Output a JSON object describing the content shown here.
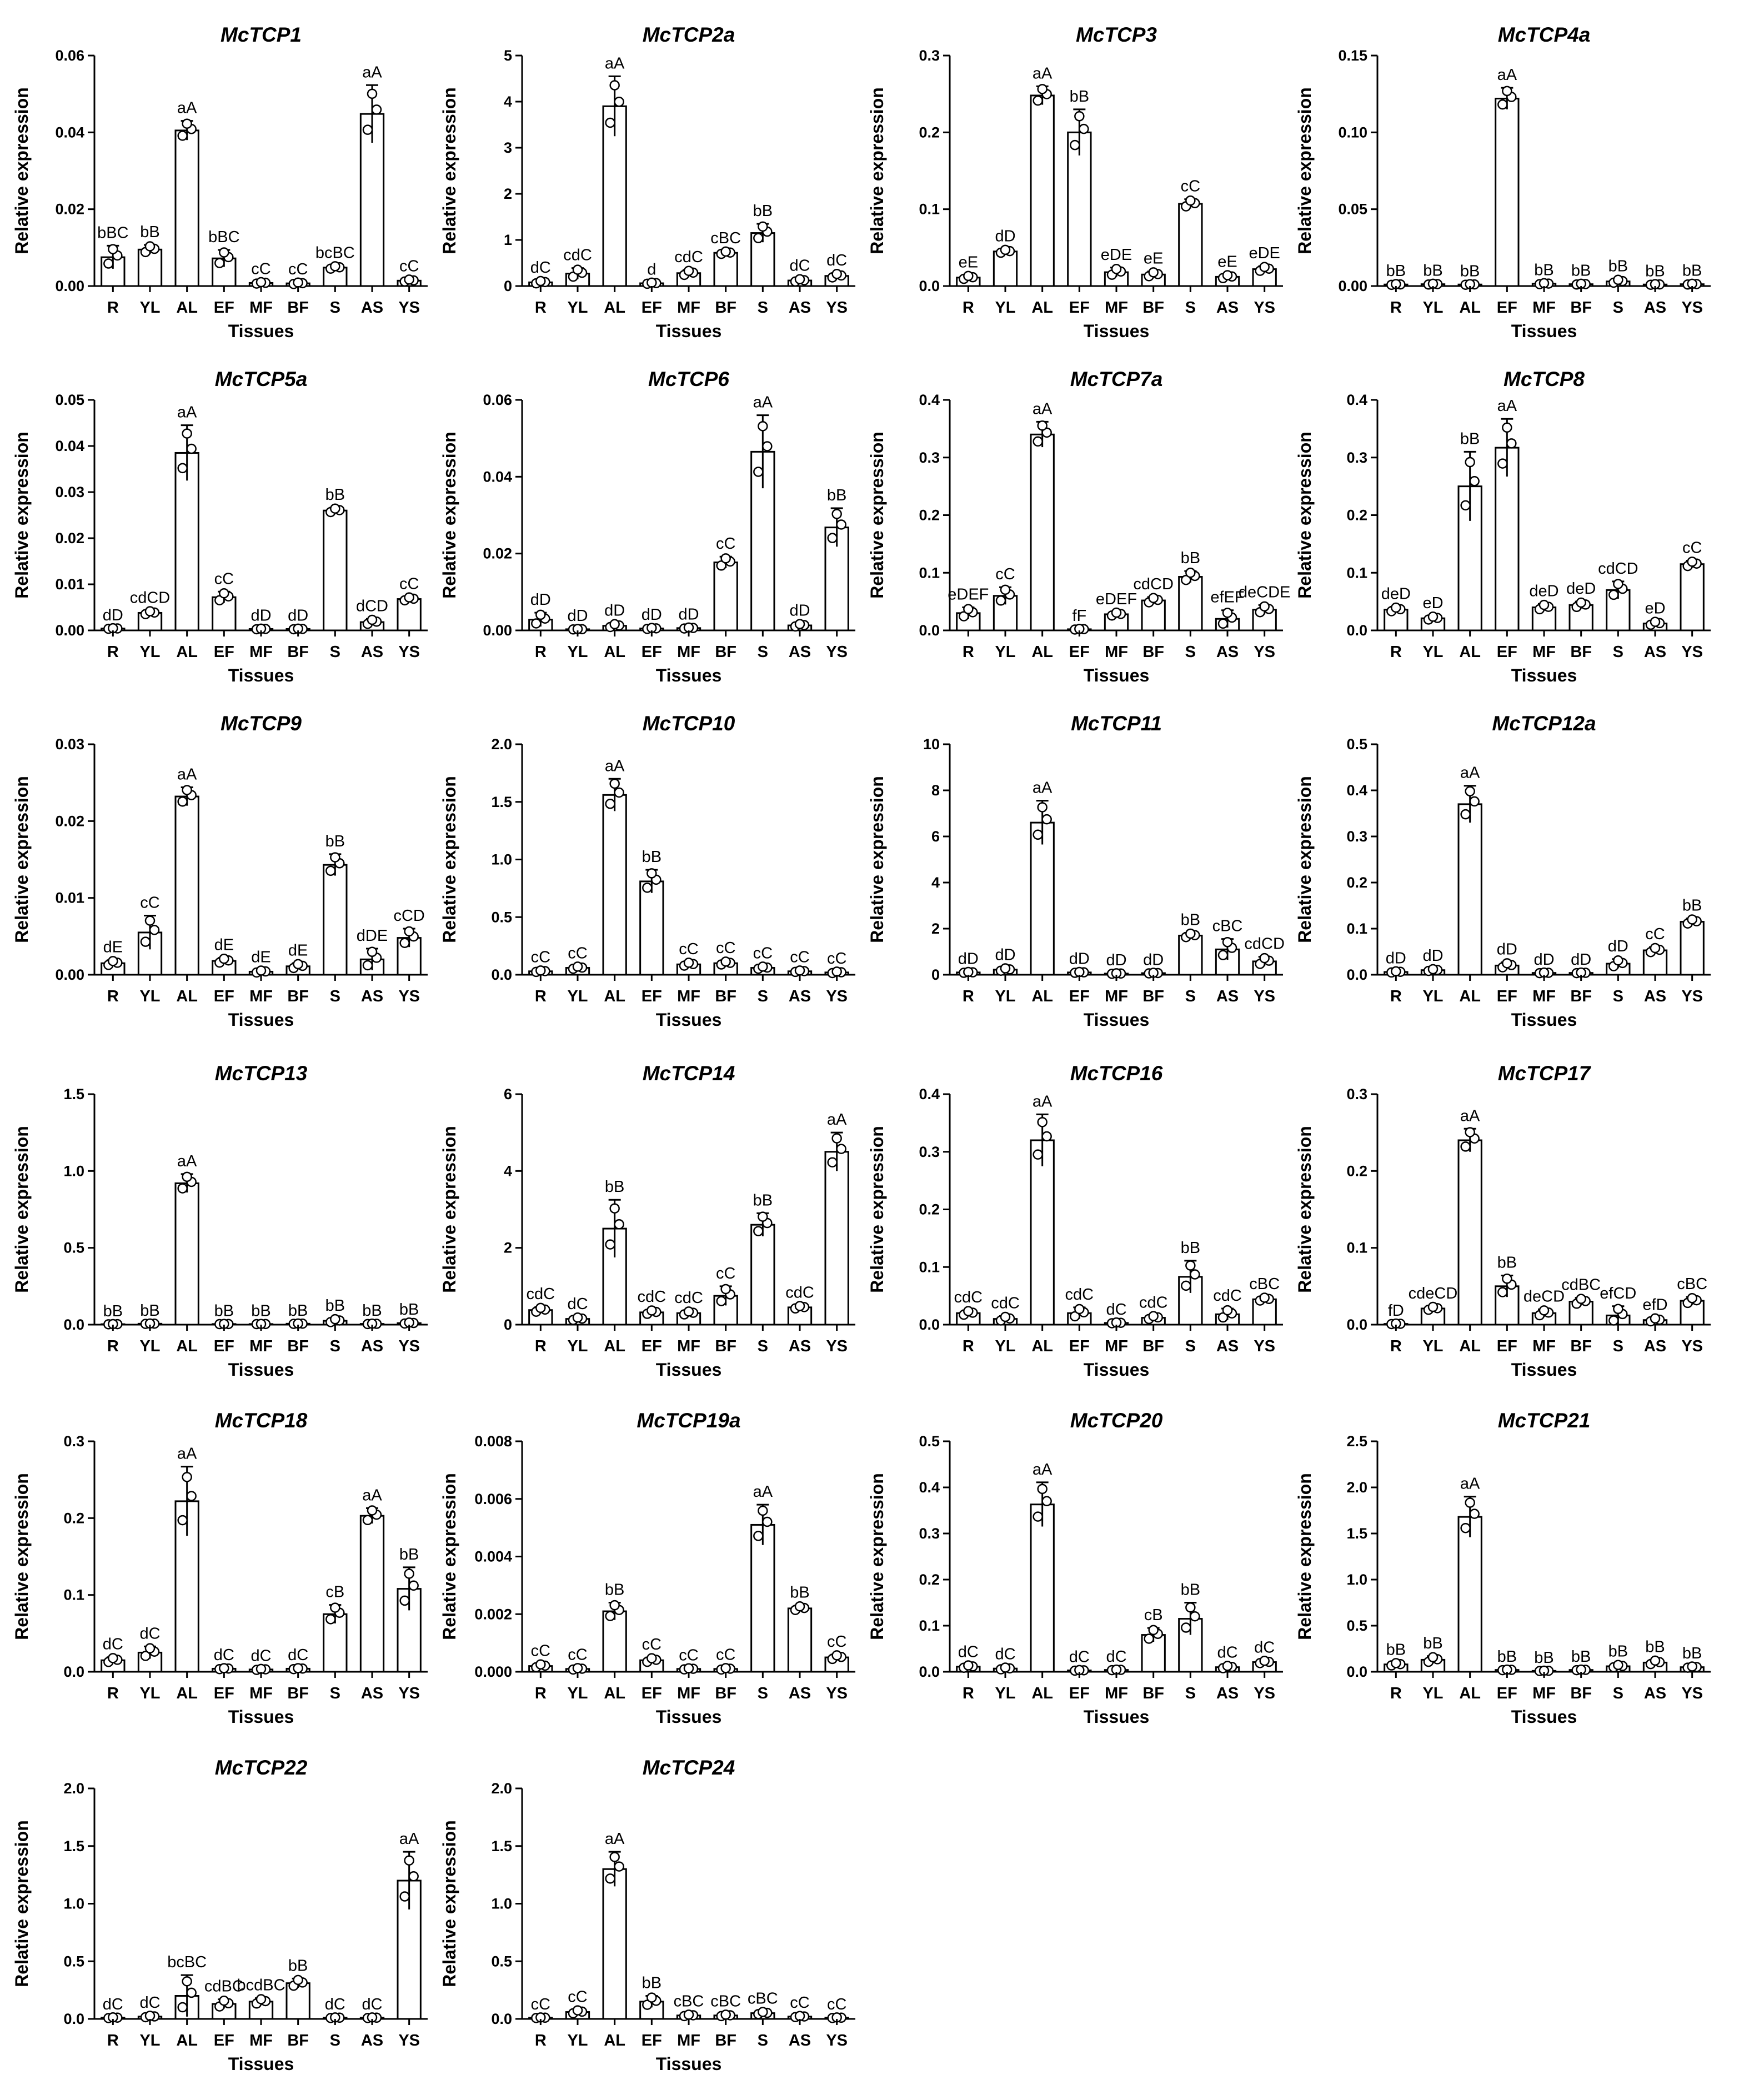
{
  "chart_data": [
    {
      "type": "bar",
      "title": "McTCP1",
      "xlabel": "Tissues",
      "ylabel": "Relative expression",
      "ylim": [
        0,
        0.06
      ],
      "yticks": [
        "0.00",
        "0.02",
        "0.04",
        "0.06"
      ],
      "categories": [
        "R",
        "YL",
        "AL",
        "EF",
        "MF",
        "BF",
        "S",
        "AS",
        "YS"
      ],
      "values": [
        0.0075,
        0.0095,
        0.0405,
        0.0072,
        0.0008,
        0.0007,
        0.0048,
        0.0448,
        0.0014
      ],
      "errors": [
        0.003,
        0.0012,
        0.0025,
        0.0022,
        0.0003,
        0.0003,
        0.0005,
        0.0075,
        0.0004
      ],
      "labels": [
        "bBC",
        "bB",
        "aA",
        "bBC",
        "cC",
        "cC",
        "bcBC",
        "aA",
        "cC"
      ]
    },
    {
      "type": "bar",
      "title": "McTCP2a",
      "xlabel": "Tissues",
      "ylabel": "Relative expression",
      "ylim": [
        0,
        5
      ],
      "yticks": [
        "0",
        "1",
        "2",
        "3",
        "4",
        "5"
      ],
      "categories": [
        "R",
        "YL",
        "AL",
        "EF",
        "MF",
        "BF",
        "S",
        "AS",
        "YS"
      ],
      "values": [
        0.08,
        0.27,
        3.9,
        0.06,
        0.28,
        0.72,
        1.15,
        0.12,
        0.22
      ],
      "errors": [
        0.04,
        0.12,
        0.65,
        0.02,
        0.07,
        0.04,
        0.2,
        0.04,
        0.06
      ],
      "labels": [
        "dC",
        "cdC",
        "aA",
        "d",
        "cdC",
        "cBC",
        "bB",
        "dC",
        "dC"
      ]
    },
    {
      "type": "bar",
      "title": "McTCP3",
      "xlabel": "Tissues",
      "ylabel": "Relative expression",
      "ylim": [
        0,
        0.3
      ],
      "yticks": [
        "0.0",
        "0.1",
        "0.2",
        "0.3"
      ],
      "categories": [
        "R",
        "YL",
        "AL",
        "EF",
        "MF",
        "BF",
        "S",
        "AS",
        "YS"
      ],
      "values": [
        0.011,
        0.045,
        0.248,
        0.2,
        0.018,
        0.015,
        0.107,
        0.012,
        0.022
      ],
      "errors": [
        0.003,
        0.003,
        0.012,
        0.03,
        0.006,
        0.004,
        0.006,
        0.003,
        0.004
      ],
      "labels": [
        "eE",
        "dD",
        "aA",
        "bB",
        "eDE",
        "eE",
        "cC",
        "eE",
        "eDE"
      ]
    },
    {
      "type": "bar",
      "title": "McTCP4a",
      "xlabel": "Tissues",
      "ylabel": "Relative expression",
      "ylim": [
        0,
        0.15
      ],
      "yticks": [
        "0.00",
        "0.05",
        "0.10",
        "0.15"
      ],
      "categories": [
        "R",
        "YL",
        "AL",
        "EF",
        "MF",
        "BF",
        "S",
        "AS",
        "YS"
      ],
      "values": [
        0.001,
        0.0012,
        0.001,
        0.122,
        0.0015,
        0.0012,
        0.003,
        0.001,
        0.0012
      ],
      "errors": [
        0.0004,
        0.0004,
        0.0003,
        0.007,
        0.0005,
        0.0004,
        0.0015,
        0.0003,
        0.0004
      ],
      "labels": [
        "bB",
        "bB",
        "bB",
        "aA",
        "bB",
        "bB",
        "bB",
        "bB",
        "bB"
      ]
    },
    {
      "type": "bar",
      "title": "McTCP5a",
      "xlabel": "Tissues",
      "ylabel": "Relative expression",
      "ylim": [
        0,
        0.05
      ],
      "yticks": [
        "0.00",
        "0.01",
        "0.02",
        "0.03",
        "0.04",
        "0.05"
      ],
      "categories": [
        "R",
        "YL",
        "AL",
        "EF",
        "MF",
        "BF",
        "S",
        "AS",
        "YS"
      ],
      "values": [
        0.0004,
        0.0038,
        0.0385,
        0.0072,
        0.0003,
        0.0003,
        0.026,
        0.0018,
        0.0068
      ],
      "errors": [
        0.0001,
        0.0005,
        0.006,
        0.0012,
        0.0001,
        0.0001,
        0.0006,
        0.0007,
        0.0005
      ],
      "labels": [
        "dD",
        "cdCD",
        "aA",
        "cC",
        "dD",
        "dD",
        "bB",
        "dCD",
        "cC"
      ]
    },
    {
      "type": "bar",
      "title": "McTCP6",
      "xlabel": "Tissues",
      "ylabel": "Relative expression",
      "ylim": [
        0,
        0.06
      ],
      "yticks": [
        "0.00",
        "0.02",
        "0.04",
        "0.06"
      ],
      "categories": [
        "R",
        "YL",
        "AL",
        "EF",
        "MF",
        "BF",
        "S",
        "AS",
        "YS"
      ],
      "values": [
        0.0028,
        0.0003,
        0.0012,
        0.0005,
        0.0006,
        0.0177,
        0.0465,
        0.0013,
        0.0268
      ],
      "errors": [
        0.0018,
        0.0001,
        0.0006,
        0.0002,
        0.0002,
        0.0015,
        0.0095,
        0.0005,
        0.005
      ],
      "labels": [
        "dD",
        "dD",
        "dD",
        "dD",
        "dD",
        "cC",
        "aA",
        "dD",
        "bB"
      ]
    },
    {
      "type": "bar",
      "title": "McTCP7a",
      "xlabel": "Tissues",
      "ylabel": "Relative expression",
      "ylim": [
        0,
        0.4
      ],
      "yticks": [
        "0.0",
        "0.1",
        "0.2",
        "0.3",
        "0.4"
      ],
      "categories": [
        "R",
        "YL",
        "AL",
        "EF",
        "MF",
        "BF",
        "S",
        "AS",
        "YS"
      ],
      "values": [
        0.03,
        0.06,
        0.34,
        0.002,
        0.028,
        0.052,
        0.093,
        0.02,
        0.036
      ],
      "errors": [
        0.01,
        0.015,
        0.022,
        0.001,
        0.004,
        0.006,
        0.01,
        0.015,
        0.008
      ],
      "labels": [
        "eDEF",
        "cC",
        "aA",
        "fF",
        "eDEF",
        "cdCD",
        "bB",
        "efEF",
        "deCDE"
      ]
    },
    {
      "type": "bar",
      "title": "McTCP8",
      "xlabel": "Tissues",
      "ylabel": "Relative expression",
      "ylim": [
        0,
        0.4
      ],
      "yticks": [
        "0.0",
        "0.1",
        "0.2",
        "0.3",
        "0.4"
      ],
      "categories": [
        "R",
        "YL",
        "AL",
        "EF",
        "MF",
        "BF",
        "S",
        "AS",
        "YS"
      ],
      "values": [
        0.036,
        0.021,
        0.25,
        0.317,
        0.04,
        0.044,
        0.07,
        0.012,
        0.115
      ],
      "errors": [
        0.005,
        0.004,
        0.06,
        0.05,
        0.006,
        0.006,
        0.015,
        0.004,
        0.006
      ],
      "labels": [
        "deD",
        "eD",
        "bB",
        "aA",
        "deD",
        "deD",
        "cdCD",
        "eD",
        "cC"
      ]
    },
    {
      "type": "bar",
      "title": "McTCP9",
      "xlabel": "Tissues",
      "ylabel": "Relative expression",
      "ylim": [
        0,
        0.03
      ],
      "yticks": [
        "0.00",
        "0.01",
        "0.02",
        "0.03"
      ],
      "categories": [
        "R",
        "YL",
        "AL",
        "EF",
        "MF",
        "BF",
        "S",
        "AS",
        "YS"
      ],
      "values": [
        0.0015,
        0.0055,
        0.0232,
        0.0018,
        0.0004,
        0.0011,
        0.0143,
        0.002,
        0.0048
      ],
      "errors": [
        0.0004,
        0.0022,
        0.0012,
        0.0004,
        0.0002,
        0.0004,
        0.0014,
        0.0014,
        0.0012
      ],
      "labels": [
        "dE",
        "cC",
        "aA",
        "dE",
        "dE",
        "dE",
        "bB",
        "dDE",
        "cCD"
      ]
    },
    {
      "type": "bar",
      "title": "McTCP10",
      "xlabel": "Tissues",
      "ylabel": "Relative expression",
      "ylim": [
        0,
        2.0
      ],
      "yticks": [
        "0.0",
        "0.5",
        "1.0",
        "1.5",
        "2.0"
      ],
      "categories": [
        "R",
        "YL",
        "AL",
        "EF",
        "MF",
        "BF",
        "S",
        "AS",
        "YS"
      ],
      "values": [
        0.03,
        0.06,
        1.56,
        0.81,
        0.09,
        0.1,
        0.06,
        0.03,
        0.02
      ],
      "errors": [
        0.01,
        0.015,
        0.14,
        0.1,
        0.02,
        0.02,
        0.015,
        0.01,
        0.01
      ],
      "labels": [
        "cC",
        "cC",
        "aA",
        "bB",
        "cC",
        "cC",
        "cC",
        "cC",
        "cC"
      ]
    },
    {
      "type": "bar",
      "title": "McTCP11",
      "xlabel": "Tissues",
      "ylabel": "Relative expression",
      "ylim": [
        0,
        10
      ],
      "yticks": [
        "0",
        "2",
        "4",
        "6",
        "8",
        "10"
      ],
      "categories": [
        "R",
        "YL",
        "AL",
        "EF",
        "MF",
        "BF",
        "S",
        "AS",
        "YS"
      ],
      "values": [
        0.1,
        0.22,
        6.6,
        0.1,
        0.05,
        0.07,
        1.7,
        1.1,
        0.58
      ],
      "errors": [
        0.03,
        0.08,
        0.95,
        0.03,
        0.02,
        0.02,
        0.12,
        0.45,
        0.2
      ],
      "labels": [
        "dD",
        "dD",
        "aA",
        "dD",
        "dD",
        "dD",
        "bB",
        "cBC",
        "cdCD"
      ]
    },
    {
      "type": "bar",
      "title": "McTCP12a",
      "xlabel": "Tissues",
      "ylabel": "Relative expression",
      "ylim": [
        0,
        0.5
      ],
      "yticks": [
        "0.0",
        "0.1",
        "0.2",
        "0.3",
        "0.4",
        "0.5"
      ],
      "categories": [
        "R",
        "YL",
        "AL",
        "EF",
        "MF",
        "BF",
        "S",
        "AS",
        "YS"
      ],
      "values": [
        0.006,
        0.01,
        0.37,
        0.02,
        0.004,
        0.004,
        0.024,
        0.053,
        0.115
      ],
      "errors": [
        0.002,
        0.003,
        0.04,
        0.007,
        0.001,
        0.001,
        0.01,
        0.007,
        0.007
      ],
      "labels": [
        "dD",
        "dD",
        "aA",
        "dD",
        "dD",
        "dD",
        "dD",
        "cC",
        "bB"
      ]
    },
    {
      "type": "bar",
      "title": "McTCP13",
      "xlabel": "Tissues",
      "ylabel": "Relative expression",
      "ylim": [
        0,
        1.5
      ],
      "yticks": [
        "0.0",
        "0.5",
        "1.0",
        "1.5"
      ],
      "categories": [
        "R",
        "YL",
        "AL",
        "EF",
        "MF",
        "BF",
        "S",
        "AS",
        "YS"
      ],
      "values": [
        0.003,
        0.006,
        0.92,
        0.004,
        0.004,
        0.006,
        0.025,
        0.005,
        0.01
      ],
      "errors": [
        0.001,
        0.002,
        0.06,
        0.001,
        0.001,
        0.002,
        0.015,
        0.002,
        0.005
      ],
      "labels": [
        "bB",
        "bB",
        "aA",
        "bB",
        "bB",
        "bB",
        "bB",
        "bB",
        "bB"
      ]
    },
    {
      "type": "bar",
      "title": "McTCP14",
      "xlabel": "Tissues",
      "ylabel": "Relative expression",
      "ylim": [
        0,
        6
      ],
      "yticks": [
        "0",
        "2",
        "4",
        "6"
      ],
      "categories": [
        "R",
        "YL",
        "AL",
        "EF",
        "MF",
        "BF",
        "S",
        "AS",
        "YS"
      ],
      "values": [
        0.38,
        0.15,
        2.5,
        0.32,
        0.3,
        0.75,
        2.6,
        0.45,
        4.5
      ],
      "errors": [
        0.08,
        0.05,
        0.75,
        0.07,
        0.06,
        0.25,
        0.3,
        0.05,
        0.5
      ],
      "labels": [
        "cdC",
        "dC",
        "bB",
        "cdC",
        "cdC",
        "cC",
        "bB",
        "cdC",
        "aA"
      ]
    },
    {
      "type": "bar",
      "title": "McTCP16",
      "xlabel": "Tissues",
      "ylabel": "Relative expression",
      "ylim": [
        0,
        0.4
      ],
      "yticks": [
        "0.0",
        "0.1",
        "0.2",
        "0.3",
        "0.4"
      ],
      "categories": [
        "R",
        "YL",
        "AL",
        "EF",
        "MF",
        "BF",
        "S",
        "AS",
        "YS"
      ],
      "values": [
        0.02,
        0.01,
        0.32,
        0.02,
        0.003,
        0.012,
        0.083,
        0.018,
        0.044
      ],
      "errors": [
        0.005,
        0.005,
        0.045,
        0.01,
        0.001,
        0.004,
        0.028,
        0.01,
        0.004
      ],
      "labels": [
        "cdC",
        "cdC",
        "aA",
        "cdC",
        "dC",
        "cdC",
        "bB",
        "cdC",
        "cBC"
      ]
    },
    {
      "type": "bar",
      "title": "McTCP17",
      "xlabel": "Tissues",
      "ylabel": "Relative expression",
      "ylim": [
        0,
        0.3
      ],
      "yticks": [
        "0.0",
        "0.1",
        "0.2",
        "0.3"
      ],
      "categories": [
        "R",
        "YL",
        "AL",
        "EF",
        "MF",
        "BF",
        "S",
        "AS",
        "YS"
      ],
      "values": [
        0.001,
        0.021,
        0.24,
        0.05,
        0.015,
        0.03,
        0.012,
        0.006,
        0.031
      ],
      "errors": [
        0.0005,
        0.003,
        0.015,
        0.014,
        0.005,
        0.005,
        0.012,
        0.003,
        0.005
      ],
      "labels": [
        "fD",
        "cdeCD",
        "aA",
        "bB",
        "deCD",
        "cdBC",
        "efCD",
        "efD",
        "cBC"
      ]
    },
    {
      "type": "bar",
      "title": "McTCP18",
      "xlabel": "Tissues",
      "ylabel": "Relative expression",
      "ylim": [
        0,
        0.3
      ],
      "yticks": [
        "0.0",
        "0.1",
        "0.2",
        "0.3"
      ],
      "categories": [
        "R",
        "YL",
        "AL",
        "EF",
        "MF",
        "BF",
        "S",
        "AS",
        "YS"
      ],
      "values": [
        0.015,
        0.025,
        0.222,
        0.004,
        0.003,
        0.004,
        0.075,
        0.203,
        0.108
      ],
      "errors": [
        0.004,
        0.008,
        0.045,
        0.001,
        0.001,
        0.001,
        0.012,
        0.01,
        0.028
      ],
      "labels": [
        "dC",
        "dC",
        "aA",
        "dC",
        "dC",
        "dC",
        "cB",
        "aA",
        "bB"
      ]
    },
    {
      "type": "bar",
      "title": "McTCP19a",
      "xlabel": "Tissues",
      "ylabel": "Relative expression",
      "ylim": [
        0,
        0.008
      ],
      "yticks": [
        "0.000",
        "0.002",
        "0.004",
        "0.006",
        "0.008"
      ],
      "categories": [
        "R",
        "YL",
        "AL",
        "EF",
        "MF",
        "BF",
        "S",
        "AS",
        "YS"
      ],
      "values": [
        0.0002,
        0.0001,
        0.0021,
        0.0004,
        0.0001,
        0.0001,
        0.0051,
        0.0022,
        0.0005
      ],
      "errors": [
        8e-05,
        4e-05,
        0.0003,
        0.0001,
        3e-05,
        4e-05,
        0.0007,
        0.0001,
        0.0001
      ],
      "labels": [
        "cC",
        "cC",
        "bB",
        "cC",
        "cC",
        "cC",
        "aA",
        "bB",
        "cC"
      ]
    },
    {
      "type": "bar",
      "title": "McTCP20",
      "xlabel": "Tissues",
      "ylabel": "Relative expression",
      "ylim": [
        0,
        0.5
      ],
      "yticks": [
        "0.0",
        "0.1",
        "0.2",
        "0.3",
        "0.4",
        "0.5"
      ],
      "categories": [
        "R",
        "YL",
        "AL",
        "EF",
        "MF",
        "BF",
        "S",
        "AS",
        "YS"
      ],
      "values": [
        0.011,
        0.007,
        0.363,
        0.003,
        0.004,
        0.08,
        0.115,
        0.01,
        0.021
      ],
      "errors": [
        0.004,
        0.003,
        0.048,
        0.001,
        0.001,
        0.015,
        0.035,
        0.004,
        0.004
      ],
      "labels": [
        "dC",
        "dC",
        "aA",
        "dC",
        "dC",
        "cB",
        "bB",
        "dC",
        "dC"
      ]
    },
    {
      "type": "bar",
      "title": "McTCP21",
      "xlabel": "Tissues",
      "ylabel": "Relative expression",
      "ylim": [
        0,
        2.5
      ],
      "yticks": [
        "0.0",
        "0.5",
        "1.0",
        "1.5",
        "2.0",
        "2.5"
      ],
      "categories": [
        "R",
        "YL",
        "AL",
        "EF",
        "MF",
        "BF",
        "S",
        "AS",
        "YS"
      ],
      "values": [
        0.08,
        0.13,
        1.68,
        0.02,
        0.01,
        0.02,
        0.06,
        0.1,
        0.05
      ],
      "errors": [
        0.02,
        0.04,
        0.22,
        0.005,
        0.003,
        0.005,
        0.02,
        0.03,
        0.01
      ],
      "labels": [
        "bB",
        "bB",
        "aA",
        "bB",
        "bB",
        "bB",
        "bB",
        "bB",
        "bB"
      ]
    },
    {
      "type": "bar",
      "title": "McTCP22",
      "xlabel": "Tissues",
      "ylabel": "Relative expression",
      "ylim": [
        0,
        2.0
      ],
      "yticks": [
        "0.0",
        "0.5",
        "1.0",
        "1.5",
        "2.0"
      ],
      "categories": [
        "R",
        "YL",
        "AL",
        "EF",
        "MF",
        "BF",
        "S",
        "AS",
        "YS"
      ],
      "values": [
        0.01,
        0.02,
        0.2,
        0.13,
        0.15,
        0.31,
        0.01,
        0.01,
        1.2
      ],
      "errors": [
        0.005,
        0.01,
        0.18,
        0.04,
        0.03,
        0.04,
        0.004,
        0.004,
        0.25
      ],
      "labels": [
        "dC",
        "dC",
        "bcBC",
        "cdBC",
        "bcdBC",
        "bB",
        "dC",
        "dC",
        "aA"
      ]
    },
    {
      "type": "bar",
      "title": "McTCP24",
      "xlabel": "Tissues",
      "ylabel": "Relative expression",
      "ylim": [
        0,
        2.0
      ],
      "yticks": [
        "0.0",
        "0.5",
        "1.0",
        "1.5",
        "2.0"
      ],
      "categories": [
        "R",
        "YL",
        "AL",
        "EF",
        "MF",
        "BF",
        "S",
        "AS",
        "YS"
      ],
      "values": [
        0.01,
        0.06,
        1.3,
        0.15,
        0.03,
        0.03,
        0.05,
        0.02,
        0.01
      ],
      "errors": [
        0.004,
        0.02,
        0.15,
        0.05,
        0.01,
        0.01,
        0.015,
        0.008,
        0.004
      ],
      "labels": [
        "cC",
        "cC",
        "aA",
        "bB",
        "cBC",
        "cBC",
        "cBC",
        "cC",
        "cC"
      ]
    }
  ]
}
